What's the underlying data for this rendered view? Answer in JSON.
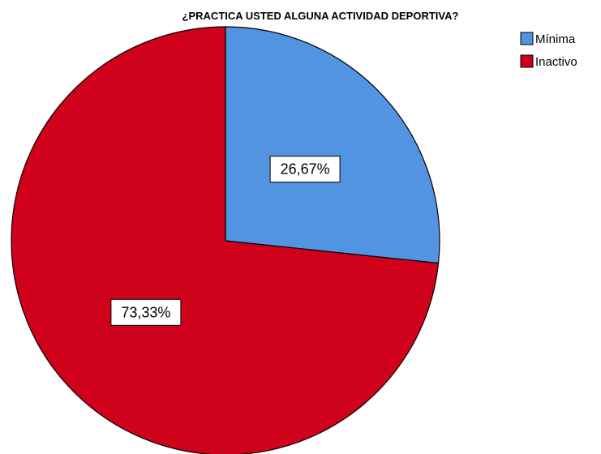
{
  "chart_data": {
    "type": "pie",
    "title": "¿PRACTICA USTED ALGUNA ACTIVIDAD DEPORTIVA?",
    "categories": [
      "Mínima",
      "Inactivo"
    ],
    "values": [
      26.67,
      73.33
    ],
    "data_labels": [
      "26,67%",
      "73,33%"
    ],
    "colors": [
      "#5294e2",
      "#d0021b"
    ],
    "legend_position": "top-right",
    "start_angle_deg": 0,
    "direction": "clockwise"
  }
}
